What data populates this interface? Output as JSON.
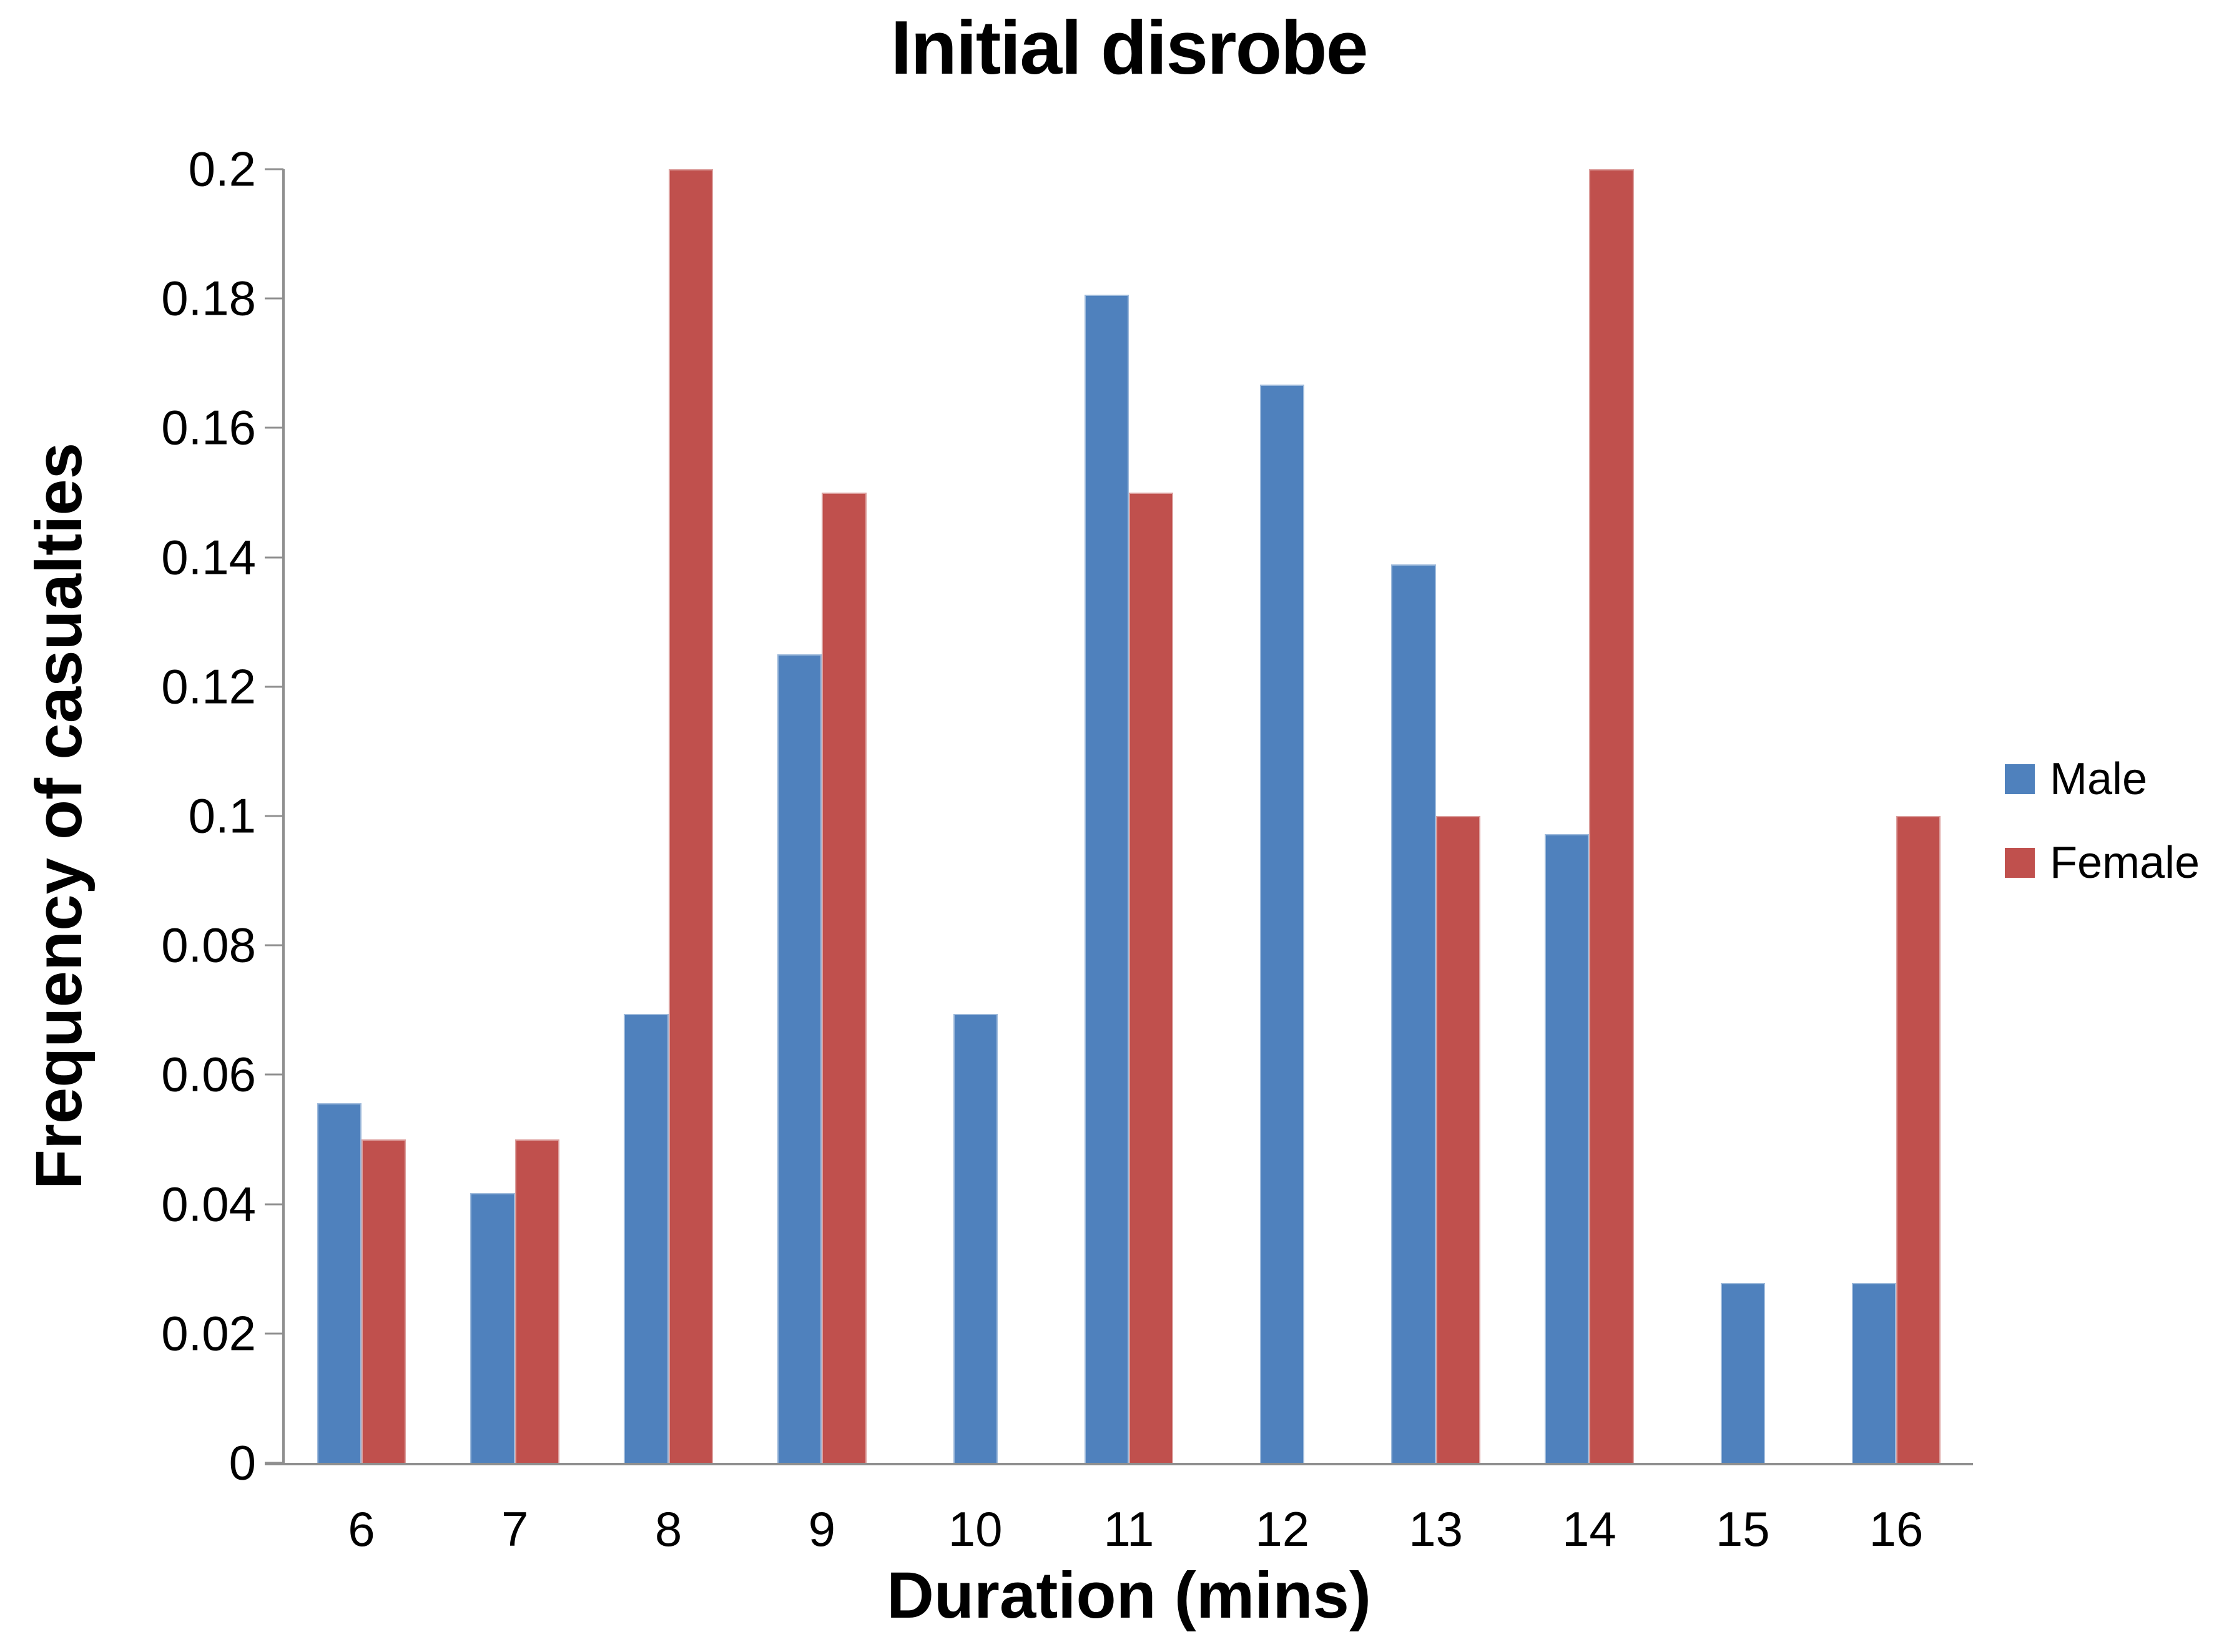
{
  "title": "Initial disrobe",
  "chart_data": {
    "type": "bar",
    "title": "Initial disrobe",
    "xlabel": "Duration (mins)",
    "ylabel": "Frequency of casualties",
    "categories": [
      "6",
      "7",
      "8",
      "9",
      "10",
      "11",
      "12",
      "13",
      "14",
      "15",
      "16"
    ],
    "series": [
      {
        "name": "Male",
        "color": "#4F81BD",
        "values": [
          0.0556,
          0.0417,
          0.0694,
          0.125,
          0.0694,
          0.1806,
          0.1667,
          0.1389,
          0.0972,
          0.0278,
          0.0278
        ]
      },
      {
        "name": "Female",
        "color": "#C0504D",
        "values": [
          0.05,
          0.05,
          0.2,
          0.15,
          0,
          0.15,
          0,
          0.1,
          0.2,
          0,
          0.1
        ]
      }
    ],
    "ylim": [
      0,
      0.2
    ],
    "ytick_step": 0.02,
    "ytick_labels": [
      "0.2",
      "0.18",
      "0.16",
      "0.14",
      "0.12",
      "0.1",
      "0.08",
      "0.06",
      "0.04",
      "0.02",
      "0"
    ],
    "grid": false,
    "legend_position": "right"
  },
  "legend": {
    "items": [
      {
        "label": "Male",
        "color": "#4F81BD"
      },
      {
        "label": "Female",
        "color": "#C0504D"
      }
    ]
  },
  "colors": {
    "axis": "#8F8F8F",
    "text": "#000000",
    "background": "#FFFFFF",
    "male": "#4F81BD",
    "female": "#C0504D"
  }
}
